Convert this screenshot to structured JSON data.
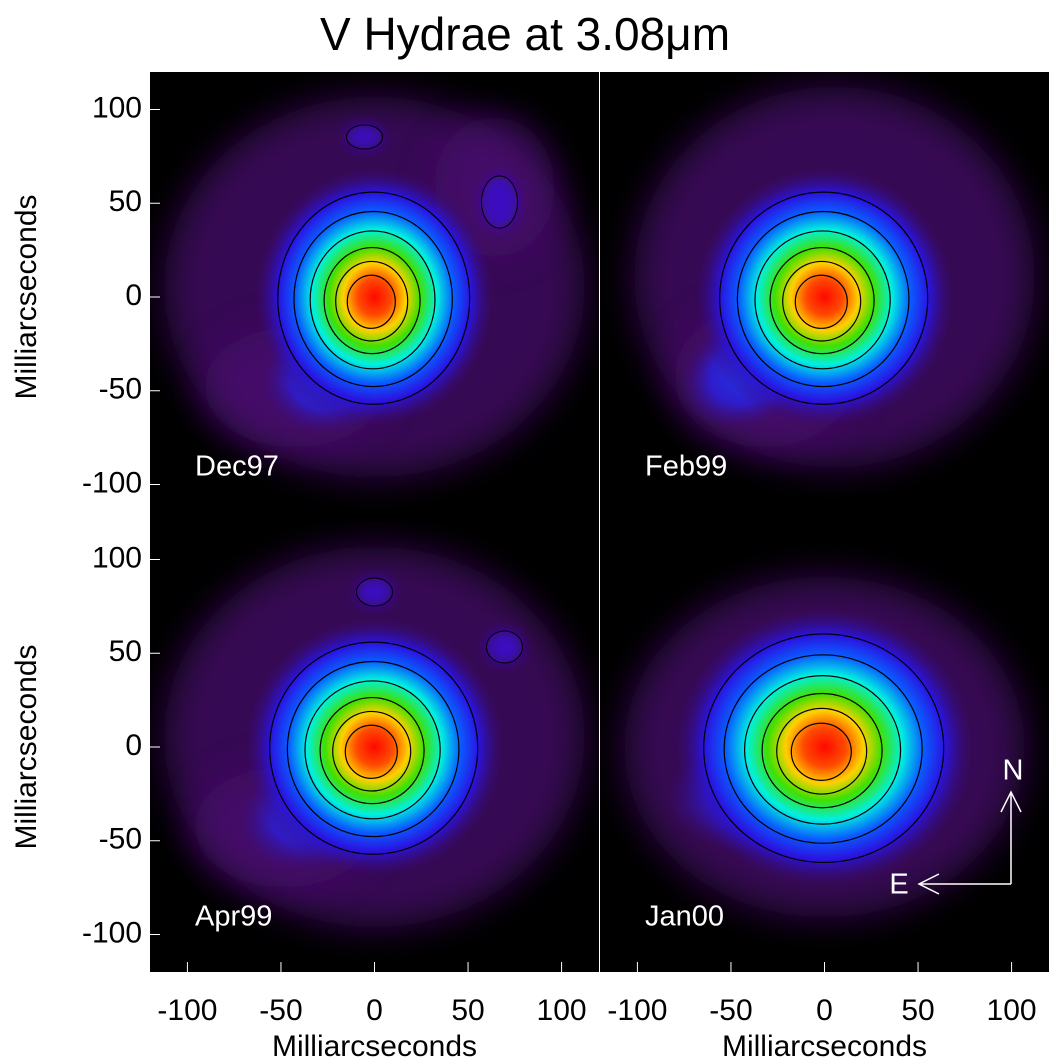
{
  "title": "V Hydrae at 3.08μm",
  "chart_data": [
    {
      "type": "image",
      "label": "Dec97",
      "xlim": [
        -120,
        120
      ],
      "ylim": [
        -120,
        120
      ],
      "yticks": [
        -100,
        -50,
        0,
        50,
        100
      ],
      "ylabel": "Milliarcseconds"
    },
    {
      "type": "image",
      "label": "Feb99",
      "xlim": [
        -120,
        120
      ],
      "ylim": [
        -120,
        120
      ]
    },
    {
      "type": "image",
      "label": "Apr99",
      "xlim": [
        -120,
        120
      ],
      "ylim": [
        -120,
        120
      ],
      "yticks": [
        -100,
        -50,
        0,
        50,
        100
      ],
      "ylabel": "Milliarcseconds",
      "xticks": [
        -100,
        -50,
        0,
        50,
        100
      ],
      "xlabel": "Milliarcseconds"
    },
    {
      "type": "image",
      "label": "Jan00",
      "xlim": [
        -120,
        120
      ],
      "ylim": [
        -120,
        120
      ],
      "xticks": [
        -100,
        -50,
        0,
        50,
        100
      ],
      "xlabel": "Milliarcseconds",
      "annotations": [
        "N",
        "E"
      ]
    }
  ]
}
